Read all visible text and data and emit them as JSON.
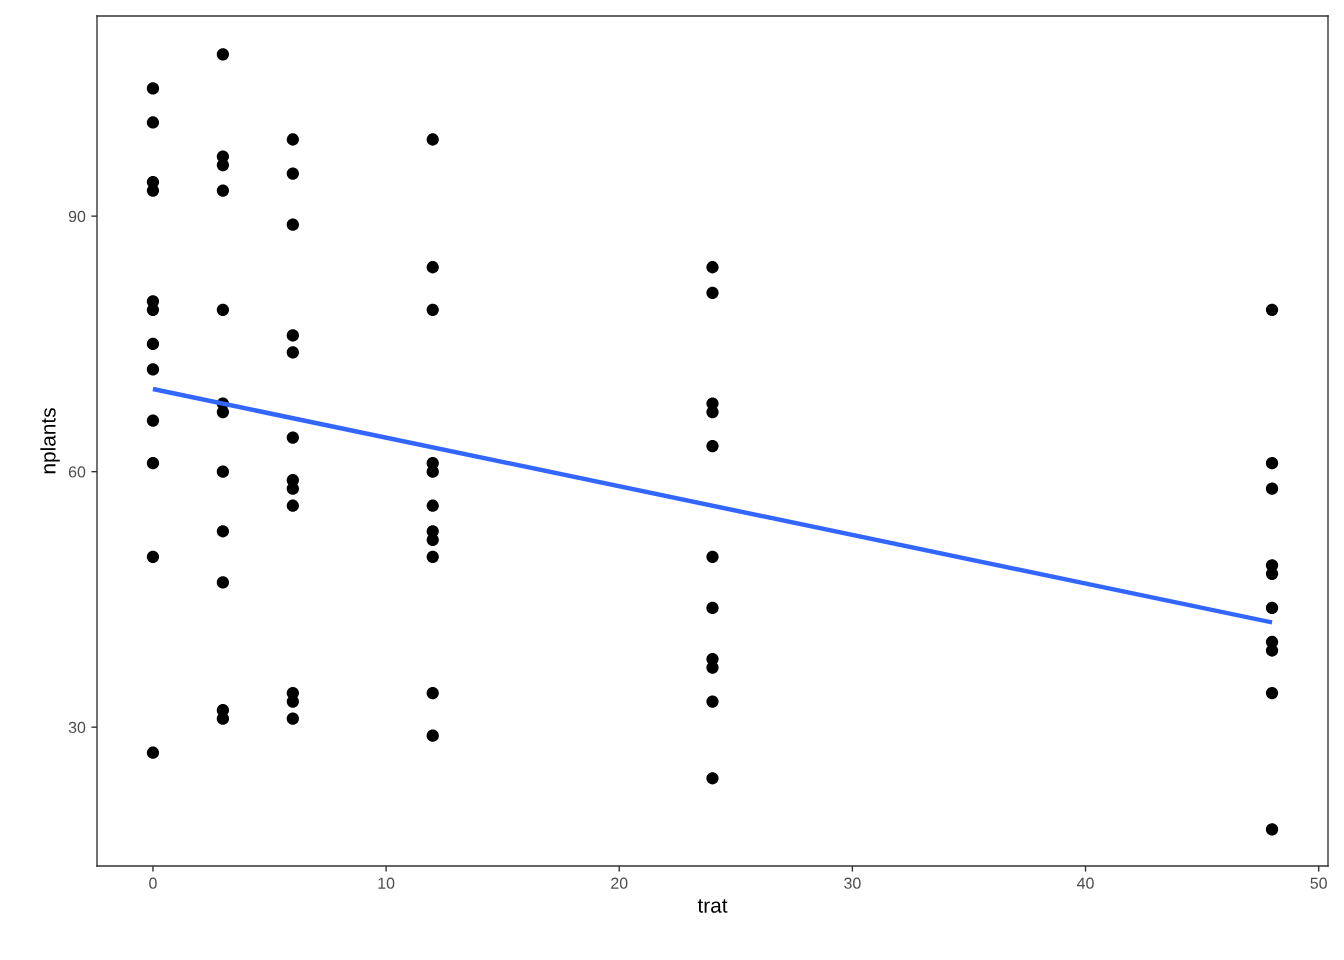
{
  "chart_data": {
    "type": "scatter",
    "xlabel": "trat",
    "ylabel": "nplants",
    "xlim": [
      -2.4,
      50.4
    ],
    "ylim": [
      13.7,
      113.5
    ],
    "xticks": [
      0,
      10,
      20,
      30,
      40,
      50
    ],
    "yticks": [
      30,
      60,
      90
    ],
    "grid": false,
    "marker": "circle",
    "series": [
      {
        "color": "#000000",
        "x": [
          0,
          0,
          0,
          0,
          0,
          0,
          0,
          0,
          0,
          0,
          0,
          0,
          3,
          3,
          3,
          3,
          3,
          3,
          3,
          3,
          3,
          3,
          3,
          3,
          6,
          6,
          6,
          6,
          6,
          6,
          6,
          6,
          6,
          6,
          6,
          6,
          12,
          12,
          12,
          12,
          12,
          12,
          12,
          12,
          12,
          12,
          12,
          24,
          24,
          24,
          24,
          24,
          24,
          24,
          24,
          24,
          24,
          24,
          48,
          48,
          48,
          48,
          48,
          48,
          48,
          48,
          48,
          48
        ],
        "values": [
          105,
          101,
          94,
          93,
          80,
          79,
          75,
          72,
          66,
          61,
          50,
          27,
          109,
          97,
          96,
          93,
          79,
          68,
          67,
          60,
          53,
          47,
          32,
          31,
          99,
          95,
          89,
          76,
          74,
          64,
          59,
          58,
          56,
          34,
          33,
          31,
          99,
          84,
          79,
          61,
          60,
          56,
          53,
          52,
          50,
          34,
          29,
          84,
          81,
          68,
          67,
          63,
          50,
          44,
          38,
          37,
          33,
          24,
          79,
          61,
          58,
          49,
          48,
          44,
          40,
          39,
          34,
          18
        ]
      },
      {
        "type": "line",
        "color": "#3366ff",
        "line_style": "solid",
        "marker": "none",
        "x": [
          0,
          48
        ],
        "values": [
          69.7,
          42.3
        ]
      }
    ]
  }
}
